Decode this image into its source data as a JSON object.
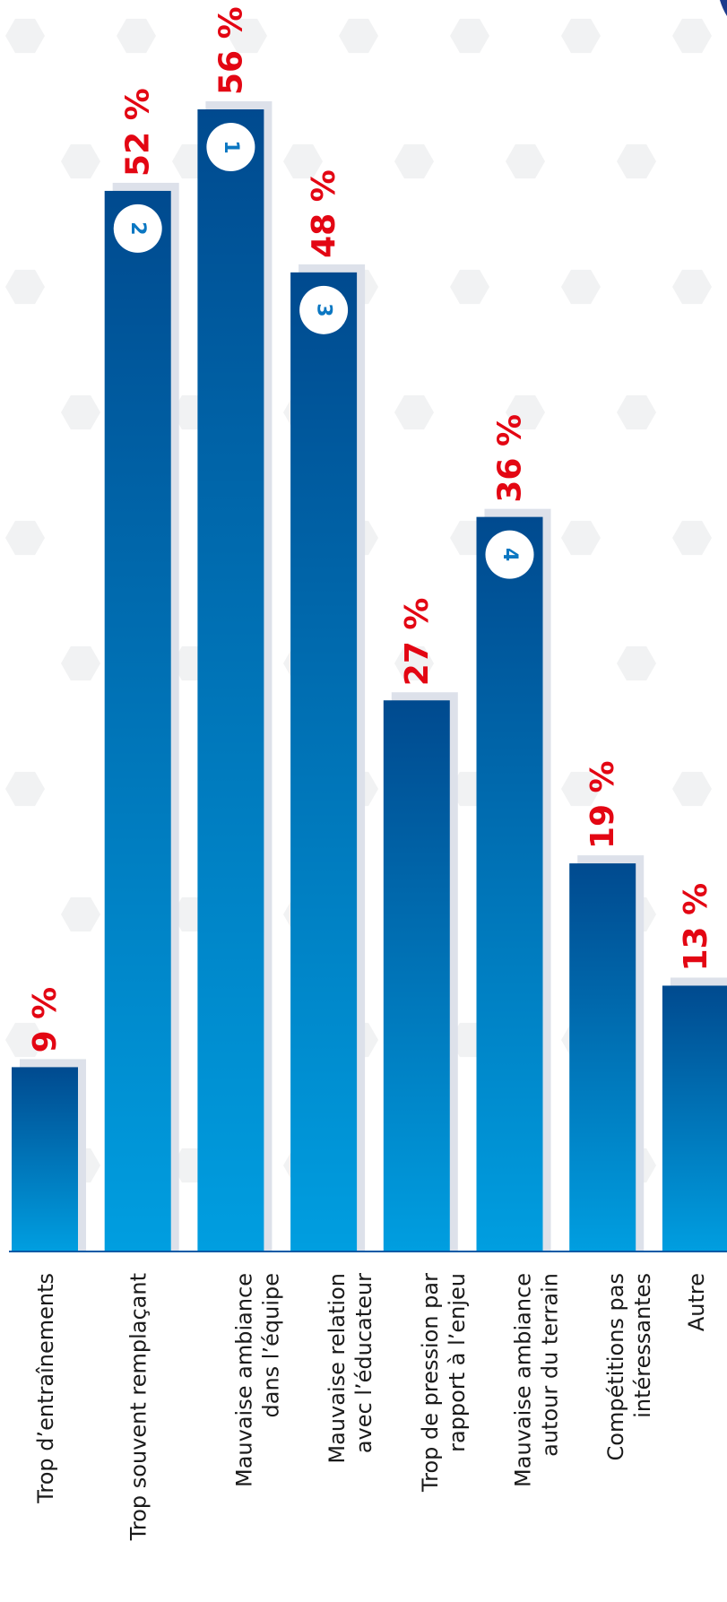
{
  "chart_data": {
    "type": "bar",
    "orientation": "vertical",
    "categories": [
      [
        "Trop d’entraînements"
      ],
      [
        "Trop souvent remplaçant"
      ],
      [
        "Mauvaise ambiance",
        "dans l’équipe"
      ],
      [
        "Mauvaise relation",
        "avec l’éducateur"
      ],
      [
        "Trop de pression par",
        "rapport à l’enjeu"
      ],
      [
        "Mauvaise ambiance",
        "autour du terrain"
      ],
      [
        "Compétitions pas",
        "intéressantes"
      ],
      [
        "Autre"
      ]
    ],
    "values": [
      9,
      52,
      56,
      48,
      27,
      36,
      19,
      13
    ],
    "value_labels": [
      "9 %",
      "52 %",
      "56 %",
      "48 %",
      "27 %",
      "36 %",
      "19 %",
      "13 %"
    ],
    "ranks": [
      "",
      "2",
      "1",
      "3",
      "",
      "4",
      "",
      ""
    ],
    "ylim": [
      0,
      56
    ],
    "grid": false,
    "colors": {
      "bar_top": "#004a8f",
      "bar_bottom": "#009ee0",
      "bar_shadow": "#dde1ea",
      "value_text": "#e30613",
      "rank_text": "#0b77c2",
      "axis": "#005aa6"
    }
  }
}
